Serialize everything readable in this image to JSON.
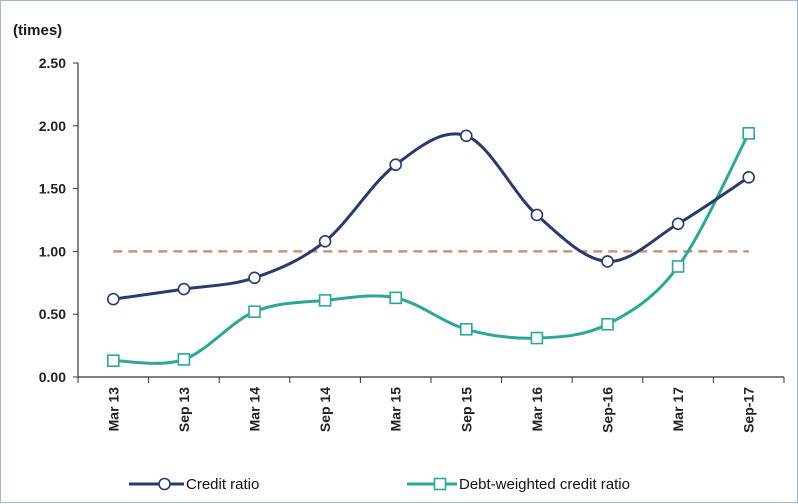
{
  "chart_data": {
    "type": "line",
    "ylabel": "(times)",
    "xlabel": "",
    "ylim": [
      0,
      2.5
    ],
    "yticks": [
      "0.00",
      "0.50",
      "1.00",
      "1.50",
      "2.00",
      "2.50"
    ],
    "categories": [
      "Mar 13",
      "Sep 13",
      "Mar 14",
      "Sep 14",
      "Mar 15",
      "Sep 15",
      "Mar 16",
      "Sep-16",
      "Mar 17",
      "Sep-17"
    ],
    "series": [
      {
        "name": "Credit ratio",
        "color": "#2b3a6e",
        "marker": "circle",
        "values": [
          0.62,
          0.7,
          0.79,
          1.08,
          1.69,
          1.92,
          1.29,
          0.92,
          1.22,
          1.59
        ]
      },
      {
        "name": "Debt-weighted credit ratio",
        "color": "#2ea69a",
        "marker": "square",
        "values": [
          0.13,
          0.14,
          0.52,
          0.61,
          0.63,
          0.38,
          0.31,
          0.42,
          0.88,
          1.94
        ]
      }
    ],
    "reference_line": {
      "value": 1.0,
      "color": "#c9927a",
      "style": "dashed"
    },
    "grid": false,
    "legend_position": "bottom"
  }
}
